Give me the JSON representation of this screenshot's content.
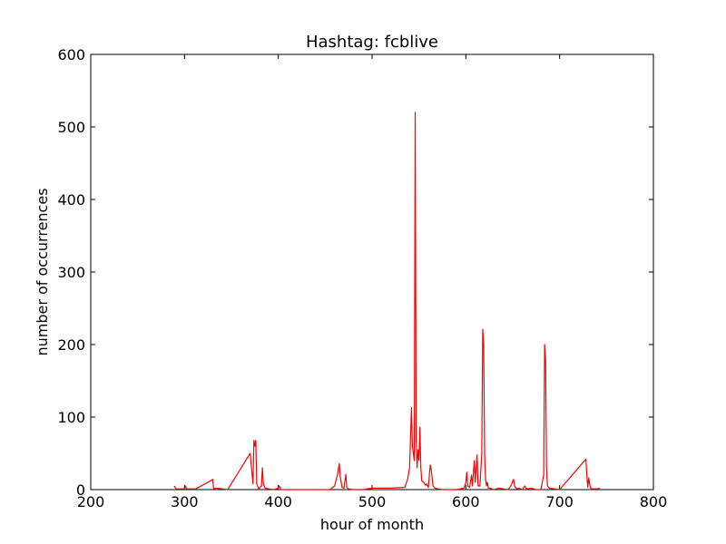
{
  "chart_data": {
    "type": "line",
    "title": "Hashtag: fcblive",
    "xlabel": "hour of month",
    "ylabel": "number of occurrences",
    "xlim": [
      200,
      800
    ],
    "ylim": [
      0,
      600
    ],
    "x_ticks": [
      200,
      300,
      400,
      500,
      600,
      700,
      800
    ],
    "y_ticks": [
      0,
      100,
      200,
      300,
      400,
      500,
      600
    ],
    "grid": false,
    "series": [
      {
        "color": "#ff0000",
        "points": [
          [
            289,
            5
          ],
          [
            291,
            1
          ],
          [
            300,
            1
          ],
          [
            301,
            5
          ],
          [
            302,
            1
          ],
          [
            312,
            1
          ],
          [
            329,
            13
          ],
          [
            330,
            14
          ],
          [
            331,
            1
          ],
          [
            333,
            2
          ],
          [
            341,
            1
          ],
          [
            346,
            0
          ],
          [
            370,
            50
          ],
          [
            373,
            8
          ],
          [
            374,
            68
          ],
          [
            375,
            60
          ],
          [
            376,
            68
          ],
          [
            377,
            8
          ],
          [
            379,
            1
          ],
          [
            382,
            5
          ],
          [
            383,
            30
          ],
          [
            384,
            8
          ],
          [
            386,
            2
          ],
          [
            390,
            1
          ],
          [
            395,
            0
          ],
          [
            400,
            2
          ],
          [
            401,
            5
          ],
          [
            403,
            0
          ],
          [
            440,
            0
          ],
          [
            455,
            0
          ],
          [
            460,
            5
          ],
          [
            463,
            20
          ],
          [
            465,
            36
          ],
          [
            466,
            18
          ],
          [
            468,
            3
          ],
          [
            470,
            2
          ],
          [
            472,
            21
          ],
          [
            473,
            3
          ],
          [
            475,
            1
          ],
          [
            480,
            0
          ],
          [
            490,
            0
          ],
          [
            500,
            2
          ],
          [
            520,
            2
          ],
          [
            535,
            3
          ],
          [
            538,
            15
          ],
          [
            540,
            30
          ],
          [
            542,
            113
          ],
          [
            543,
            60
          ],
          [
            545,
            40
          ],
          [
            546,
            520
          ],
          [
            547,
            70
          ],
          [
            548,
            30
          ],
          [
            549,
            55
          ],
          [
            550,
            40
          ],
          [
            551,
            86
          ],
          [
            552,
            30
          ],
          [
            553,
            12
          ],
          [
            555,
            10
          ],
          [
            557,
            6
          ],
          [
            558,
            8
          ],
          [
            560,
            3
          ],
          [
            562,
            34
          ],
          [
            563,
            28
          ],
          [
            565,
            5
          ],
          [
            567,
            2
          ],
          [
            570,
            1
          ],
          [
            575,
            0
          ],
          [
            580,
            0
          ],
          [
            590,
            0
          ],
          [
            598,
            2
          ],
          [
            600,
            10
          ],
          [
            601,
            24
          ],
          [
            602,
            5
          ],
          [
            604,
            3
          ],
          [
            606,
            20
          ],
          [
            607,
            5
          ],
          [
            609,
            40
          ],
          [
            610,
            10
          ],
          [
            611,
            30
          ],
          [
            612,
            48
          ],
          [
            613,
            5
          ],
          [
            615,
            5
          ],
          [
            617,
            50
          ],
          [
            618,
            221
          ],
          [
            619,
            200
          ],
          [
            620,
            50
          ],
          [
            621,
            15
          ],
          [
            622,
            5
          ],
          [
            623,
            10
          ],
          [
            624,
            2
          ],
          [
            626,
            2
          ],
          [
            630,
            0
          ],
          [
            635,
            2
          ],
          [
            640,
            1
          ],
          [
            645,
            0
          ],
          [
            648,
            5
          ],
          [
            650,
            12
          ],
          [
            651,
            14
          ],
          [
            652,
            5
          ],
          [
            654,
            1
          ],
          [
            657,
            2
          ],
          [
            658,
            1
          ],
          [
            660,
            0
          ],
          [
            663,
            5
          ],
          [
            664,
            2
          ],
          [
            666,
            1
          ],
          [
            670,
            2
          ],
          [
            675,
            0
          ],
          [
            680,
            0
          ],
          [
            683,
            20
          ],
          [
            684,
            200
          ],
          [
            685,
            180
          ],
          [
            686,
            30
          ],
          [
            687,
            5
          ],
          [
            689,
            2
          ],
          [
            700,
            0
          ],
          [
            728,
            42
          ],
          [
            729,
            20
          ],
          [
            730,
            3
          ],
          [
            731,
            16
          ],
          [
            732,
            8
          ],
          [
            733,
            2
          ],
          [
            735,
            1
          ],
          [
            740,
            1
          ],
          [
            743,
            2
          ]
        ]
      }
    ]
  }
}
